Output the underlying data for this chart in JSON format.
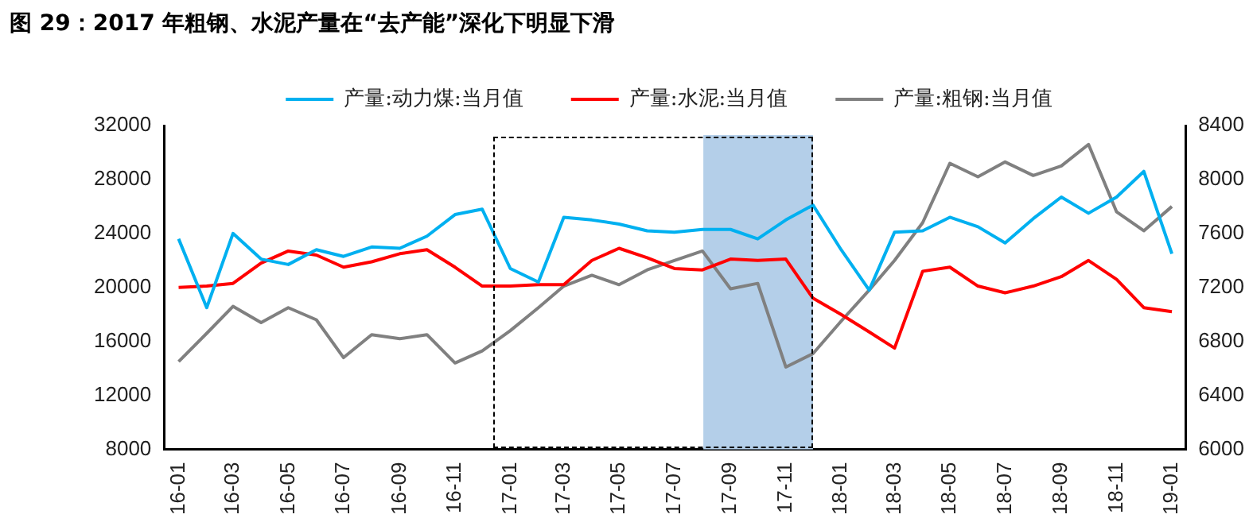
{
  "chart_data": {
    "type": "line",
    "title": "图 29：2017 年粗钢、水泥产量在“去产能”深化下明显下滑",
    "x": [
      "2016-01",
      "2016-02",
      "2016-03",
      "2016-04",
      "2016-05",
      "2016-06",
      "2016-07",
      "2016-08",
      "2016-09",
      "2016-10",
      "2016-11",
      "2016-12",
      "2017-01",
      "2017-02",
      "2017-03",
      "2017-04",
      "2017-05",
      "2017-06",
      "2017-07",
      "2017-08",
      "2017-09",
      "2017-10",
      "2017-11",
      "2017-12",
      "2018-01",
      "2018-02",
      "2018-03",
      "2018-04",
      "2018-05",
      "2018-06",
      "2018-07",
      "2018-08",
      "2018-09",
      "2018-10",
      "2018-11",
      "2018-12",
      "2019-01"
    ],
    "series": [
      {
        "name": "产量:动力煤:当月值",
        "color": "#00b0f0",
        "values": [
          23600,
          18500,
          24000,
          22100,
          21700,
          22800,
          22300,
          23000,
          22900,
          23800,
          25400,
          25800,
          21400,
          20400,
          25200,
          25000,
          24700,
          24200,
          24100,
          24300,
          24300,
          23600,
          25000,
          26100,
          22800,
          19800,
          24100,
          24200,
          25200,
          24500,
          23300,
          25100,
          26700,
          25500,
          26700,
          28600,
          22500
        ]
      },
      {
        "name": "产量:水泥:当月值",
        "color": "#ff0000",
        "values": [
          20000,
          20100,
          20300,
          21800,
          22700,
          22400,
          21500,
          21900,
          22500,
          22800,
          21500,
          20100,
          20100,
          20200,
          20200,
          22000,
          22900,
          22200,
          21400,
          21300,
          22100,
          22000,
          22100,
          19200,
          18000,
          16700,
          15500,
          21200,
          21500,
          20100,
          19600,
          20100,
          20800,
          22000,
          20600,
          18500,
          18200
        ]
      },
      {
        "name": "产量:粗钢:当月值",
        "color": "#808080",
        "axis": "y2",
        "values": [
          6650,
          6860,
          7060,
          6940,
          7050,
          6960,
          6680,
          6850,
          6820,
          6850,
          6640,
          6730,
          6880,
          7050,
          7210,
          7290,
          7220,
          7330,
          7400,
          7470,
          7190,
          7230,
          6610,
          6710,
          6950,
          7180,
          7400,
          7680,
          8120,
          8020,
          8130,
          8030,
          8100,
          8260,
          7760,
          7620,
          7800
        ]
      }
    ],
    "xlim": [
      "2015-12-16",
      "2019-01-16"
    ],
    "xticks": [
      {
        "value": "2016-01",
        "label": "16-01"
      },
      {
        "value": "2016-03",
        "label": "16-03"
      },
      {
        "value": "2016-05",
        "label": "16-05"
      },
      {
        "value": "2016-07",
        "label": "16-07"
      },
      {
        "value": "2016-09",
        "label": "16-09"
      },
      {
        "value": "2016-11",
        "label": "16-11"
      },
      {
        "value": "2017-01",
        "label": "17-01"
      },
      {
        "value": "2017-03",
        "label": "17-03"
      },
      {
        "value": "2017-05",
        "label": "17-05"
      },
      {
        "value": "2017-07",
        "label": "17-07"
      },
      {
        "value": "2017-09",
        "label": "17-09"
      },
      {
        "value": "2017-11",
        "label": "17-11"
      },
      {
        "value": "2018-01",
        "label": "18-01"
      },
      {
        "value": "2018-03",
        "label": "18-03"
      },
      {
        "value": "2018-05",
        "label": "18-05"
      },
      {
        "value": "2018-07",
        "label": "18-07"
      },
      {
        "value": "2018-09",
        "label": "18-09"
      },
      {
        "value": "2018-11",
        "label": "18-11"
      },
      {
        "value": "2019-01",
        "label": "19-01"
      }
    ],
    "ylim": [
      8000,
      32000
    ],
    "yticks": [
      8000,
      12000,
      16000,
      20000,
      24000,
      28000,
      32000
    ],
    "y2lim": [
      6000,
      8400
    ],
    "y2ticks": [
      6000,
      6400,
      6800,
      7200,
      7600,
      8000,
      8400
    ],
    "bands": [
      {
        "axis": "x",
        "from": "2017-08-02",
        "to": "2017-12-01",
        "color": "#b4cfe9"
      }
    ],
    "grid": false,
    "legend": "top",
    "marker": "none",
    "line_style": "solid"
  }
}
